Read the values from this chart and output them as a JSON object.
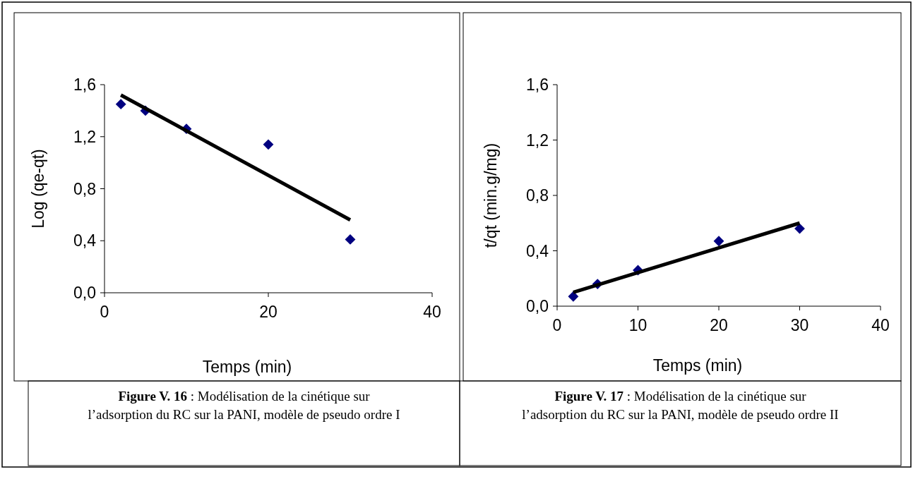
{
  "chart_data": [
    {
      "type": "scatter",
      "xlabel": "Temps (min)",
      "ylabel": "Log (qe-qt)",
      "xlim": [
        0,
        40
      ],
      "xticks": [
        0,
        20,
        40
      ],
      "ylim": [
        0,
        1.6
      ],
      "yticks": [
        {
          "value": 0,
          "label": "0,0"
        },
        {
          "value": 0.4,
          "label": "0,4"
        },
        {
          "value": 0.8,
          "label": "0,8"
        },
        {
          "value": 1.2,
          "label": "1,2"
        },
        {
          "value": 1.6,
          "label": "1,6"
        }
      ],
      "series": [
        {
          "marker": "diamond",
          "color": "#000080",
          "x": [
            2,
            5,
            10,
            20,
            30
          ],
          "values": [
            1.45,
            1.4,
            1.26,
            1.14,
            0.41
          ]
        },
        {
          "type": "line",
          "color": "#000000",
          "x": [
            2,
            30
          ],
          "values": [
            1.52,
            0.56
          ]
        }
      ],
      "annotations": [
        "Figure V. 16",
        ": Modélisation de la cinétique sur l’adsorption du RC sur la PANI, modèle de pseudo ordre I"
      ]
    },
    {
      "type": "scatter",
      "xlabel": "Temps (min)",
      "ylabel": "t/qt (min.g/mg)",
      "xlim": [
        0,
        40
      ],
      "xticks": [
        0,
        10,
        20,
        30,
        40
      ],
      "ylim": [
        0,
        1.6
      ],
      "yticks": [
        {
          "value": 0,
          "label": "0,0"
        },
        {
          "value": 0.4,
          "label": "0,4"
        },
        {
          "value": 0.8,
          "label": "0,8"
        },
        {
          "value": 1.2,
          "label": "1,2"
        },
        {
          "value": 1.6,
          "label": "1,6"
        }
      ],
      "series": [
        {
          "marker": "diamond",
          "color": "#000080",
          "x": [
            2,
            5,
            10,
            20,
            30
          ],
          "values": [
            0.07,
            0.16,
            0.26,
            0.47,
            0.56
          ]
        },
        {
          "type": "line",
          "color": "#000000",
          "x": [
            2,
            30
          ],
          "values": [
            0.1,
            0.6
          ]
        }
      ],
      "annotations": [
        "Figure V. 17",
        ": Modélisation de la cinétique sur l’adsorption du RC sur la PANI, modèle de pseudo ordre II"
      ]
    }
  ]
}
